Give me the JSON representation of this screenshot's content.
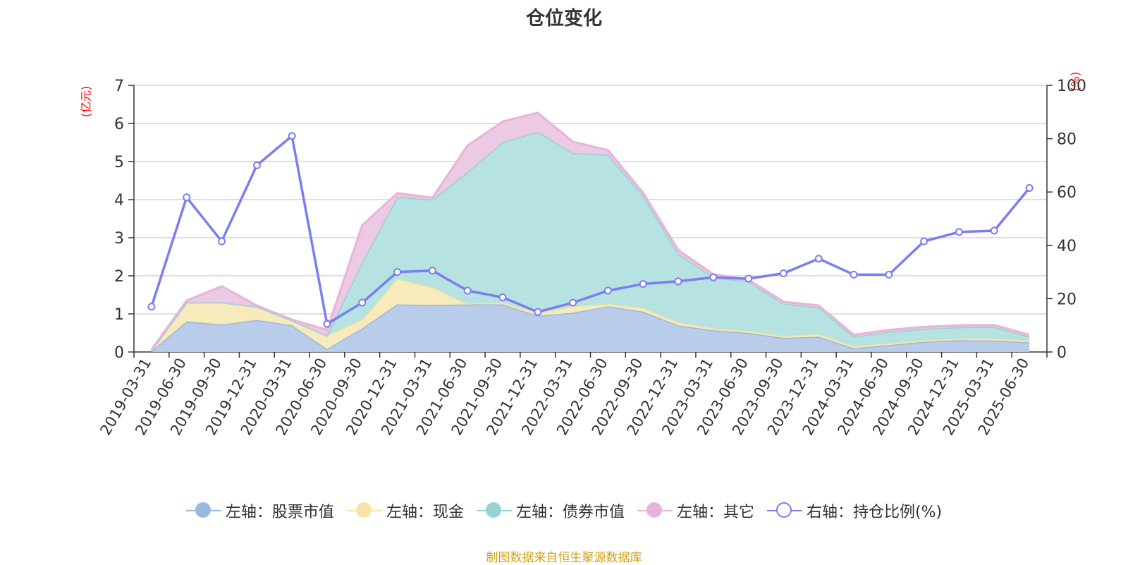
{
  "title": "仓位变化",
  "left_unit": "(亿元)",
  "right_unit": "(%)",
  "source_text": "制图数据来自恒生聚源数据库",
  "legend": [
    {
      "label": "左轴：股票市值",
      "color": "#9bb8e0",
      "line": "#9bb8e0",
      "hollow": false
    },
    {
      "label": "左轴：现金",
      "color": "#f7e4a6",
      "line": "#f7e4a6",
      "hollow": false
    },
    {
      "label": "左轴：债券市值",
      "color": "#97d3d3",
      "line": "#97d3d3",
      "hollow": false
    },
    {
      "label": "左轴：其它",
      "color": "#e8b3d8",
      "line": "#e8b3d8",
      "hollow": false
    },
    {
      "label": "右轴：持仓比例(%)",
      "color": "#7b7ef2",
      "line": "#7b7ef2",
      "hollow": true
    }
  ],
  "chart_data": {
    "type": "area",
    "categories": [
      "2019-03-31",
      "2019-06-30",
      "2019-09-30",
      "2019-12-31",
      "2020-03-31",
      "2020-06-30",
      "2020-09-30",
      "2020-12-31",
      "2021-03-31",
      "2021-06-30",
      "2021-09-30",
      "2021-12-31",
      "2022-03-31",
      "2022-06-30",
      "2022-09-30",
      "2022-12-31",
      "2023-03-31",
      "2023-06-30",
      "2023-09-30",
      "2023-12-31",
      "2024-03-31",
      "2024-06-30",
      "2024-09-30",
      "2024-12-31",
      "2025-03-31",
      "2025-06-30"
    ],
    "left_axis": {
      "min": 0,
      "max": 7,
      "ticks": [
        0,
        1,
        2,
        3,
        4,
        5,
        6,
        7
      ]
    },
    "right_axis": {
      "min": 0,
      "max": 100,
      "ticks": [
        0,
        20,
        40,
        60,
        80,
        100
      ]
    },
    "stacked": true,
    "series": [
      {
        "name": "左轴：股票市值",
        "axis": "left",
        "color": "#b5c9e8",
        "stroke": "#9bb8e0",
        "values": [
          0.02,
          0.8,
          0.72,
          0.84,
          0.7,
          0.08,
          0.62,
          1.25,
          1.23,
          1.25,
          1.25,
          0.95,
          1.03,
          1.2,
          1.06,
          0.7,
          0.57,
          0.5,
          0.37,
          0.4,
          0.1,
          0.18,
          0.27,
          0.31,
          0.3,
          0.25
        ]
      },
      {
        "name": "左轴：现金",
        "axis": "left",
        "color": "#f7eab8",
        "stroke": "#f3e2a0",
        "values": [
          0.02,
          0.5,
          0.58,
          0.35,
          0.13,
          0.35,
          0.23,
          0.67,
          0.47,
          0.02,
          0.05,
          0.08,
          0.17,
          0.06,
          0.1,
          0.08,
          0.05,
          0.05,
          0.05,
          0.07,
          0.05,
          0.05,
          0.04,
          0.04,
          0.06,
          0.05
        ]
      },
      {
        "name": "左轴：债券市值",
        "axis": "left",
        "color": "#b2e0e0",
        "stroke": "#97d3d3",
        "values": [
          0,
          0,
          0,
          0,
          0,
          0,
          1.5,
          2.15,
          2.3,
          3.45,
          4.2,
          4.75,
          4.02,
          3.92,
          2.95,
          1.8,
          1.35,
          1.3,
          0.85,
          0.7,
          0.25,
          0.3,
          0.3,
          0.3,
          0.3,
          0.1
        ]
      },
      {
        "name": "左轴：其它",
        "axis": "left",
        "color": "#ebc6e3",
        "stroke": "#e8b3d8",
        "values": [
          0.02,
          0.05,
          0.43,
          0.03,
          0.02,
          0.15,
          0.98,
          0.1,
          0.05,
          0.7,
          0.55,
          0.5,
          0.3,
          0.12,
          0.07,
          0.1,
          0.07,
          0.05,
          0.05,
          0.05,
          0.05,
          0.05,
          0.05,
          0.05,
          0.05,
          0.05
        ]
      },
      {
        "name": "右轴：持仓比例(%)",
        "axis": "right",
        "type": "line",
        "color": "#7b7ef2",
        "values": [
          17,
          58,
          41.5,
          70,
          81,
          10.5,
          18.5,
          30,
          30.5,
          23,
          20.5,
          15,
          18.5,
          23,
          25.5,
          26.5,
          28,
          27.5,
          29.5,
          35,
          29,
          29,
          41.5,
          45,
          45.5,
          61.5
        ]
      }
    ]
  }
}
